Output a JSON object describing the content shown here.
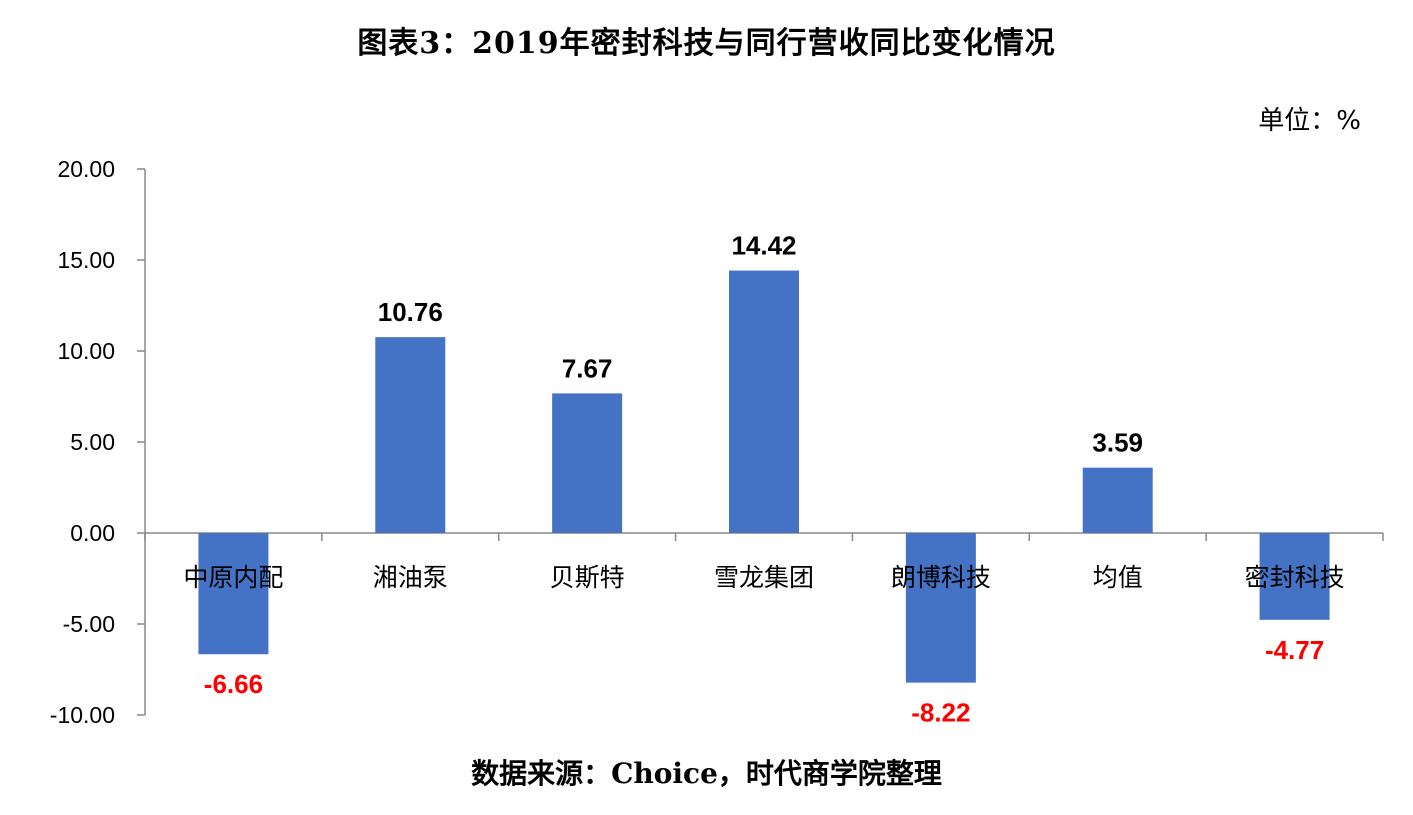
{
  "title": "图表3：2019年密封科技与同行营收同比变化情况",
  "unit": "单位：%",
  "source": "数据来源：Choice，时代商学院整理",
  "colors": {
    "bar": "#4472C4",
    "positive_label": "#000000",
    "negative_label": "#FF0000",
    "axis": "#888888"
  },
  "chart_data": {
    "type": "bar",
    "categories": [
      "中原内配",
      "湘油泵",
      "贝斯特",
      "雪龙集团",
      "朗博科技",
      "均值",
      "密封科技"
    ],
    "values": [
      -6.66,
      10.76,
      7.67,
      14.42,
      -8.22,
      3.59,
      -4.77
    ],
    "value_labels": [
      "-6.66",
      "10.76",
      "7.67",
      "14.42",
      "-8.22",
      "3.59",
      "-4.77"
    ],
    "y_ticks": [
      "20.00",
      "15.00",
      "10.00",
      "5.00",
      "0.00",
      "-5.00",
      "-10.00"
    ],
    "ylim": [
      -10,
      20
    ],
    "xlabel": "",
    "ylabel": "",
    "grid": false,
    "legend": "none"
  }
}
